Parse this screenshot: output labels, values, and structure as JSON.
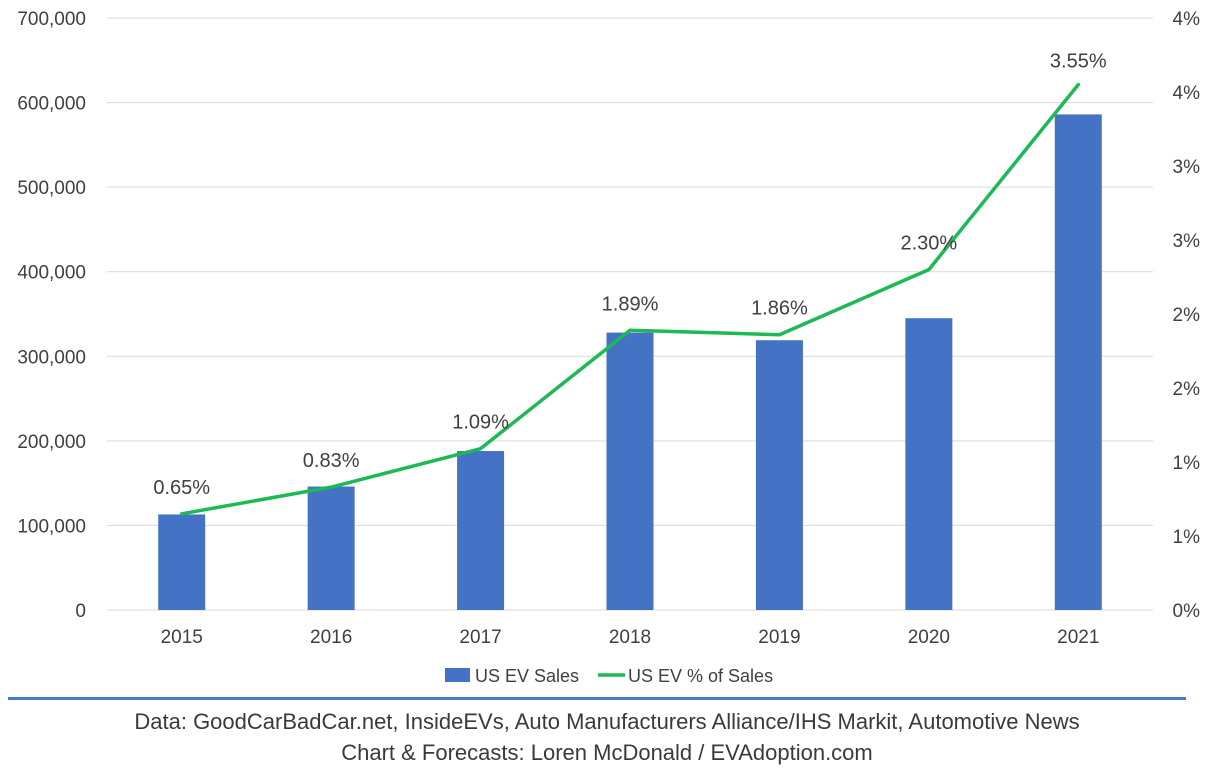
{
  "chart_data": {
    "type": "bar",
    "title": "",
    "xlabel": "",
    "ylabel": "",
    "categories": [
      "2015",
      "2016",
      "2017",
      "2018",
      "2019",
      "2020",
      "2021"
    ],
    "ylim": [
      0,
      700000
    ],
    "y_ticks": [
      0,
      100000,
      200000,
      300000,
      400000,
      500000,
      600000,
      700000
    ],
    "y_tick_labels": [
      "0",
      "100,000",
      "200,000",
      "300,000",
      "400,000",
      "500,000",
      "600,000",
      "700,000"
    ],
    "y2lim": [
      0,
      4
    ],
    "y2_ticks": [
      0,
      0.5,
      1,
      1.5,
      2,
      2.5,
      3,
      3.5,
      4
    ],
    "y2_tick_labels": [
      "0%",
      "1%",
      "1%",
      "2%",
      "2%",
      "3%",
      "3%",
      "4%",
      "4%"
    ],
    "grid": true,
    "legend_position": "bottom",
    "series": [
      {
        "name": "US EV Sales",
        "type": "bar",
        "axis": "left",
        "color": "#4472c4",
        "values": [
          113000,
          146000,
          188000,
          328000,
          319000,
          345000,
          586000
        ]
      },
      {
        "name": "US EV % of Sales",
        "type": "line",
        "axis": "right",
        "color": "#1db954",
        "values": [
          0.65,
          0.83,
          1.09,
          1.89,
          1.86,
          2.3,
          3.55
        ],
        "data_labels": [
          "0.65%",
          "0.83%",
          "1.09%",
          "1.89%",
          "1.86%",
          "2.30%",
          "3.55%"
        ]
      }
    ]
  },
  "source": {
    "line1": "Data: GoodCarBadCar.net, InsideEVs, Auto Manufacturers Alliance/IHS Markit, Automotive News",
    "line2": "Chart & Forecasts: Loren McDonald / EVAdoption.com"
  }
}
